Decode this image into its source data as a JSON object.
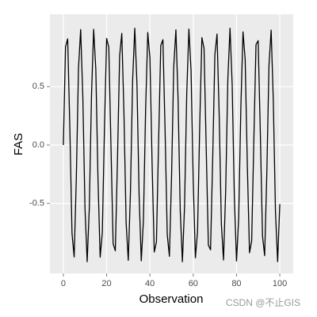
{
  "chart_data": {
    "type": "line",
    "x_label": "Observation",
    "y_label": "FAS",
    "watermark": "CSDN @不止GIS",
    "color": "#000000",
    "grid": true,
    "xlim": [
      -6.2,
      106.2
    ],
    "ylim": [
      -1.1,
      1.12
    ],
    "xticks": [
      0,
      20,
      40,
      60,
      80,
      100
    ],
    "yticks": [
      -0.5,
      {
        "value": 0,
        "label": "0.0"
      },
      0.5
    ],
    "series": [
      {
        "name": "FAS",
        "color": "#000000",
        "x": [
          0,
          1,
          2,
          3,
          4,
          5,
          6,
          7,
          8,
          9,
          10,
          11,
          12,
          13,
          14,
          15,
          16,
          17,
          18,
          19,
          20,
          21,
          22,
          23,
          24,
          25,
          26,
          27,
          28,
          29,
          30,
          31,
          32,
          33,
          34,
          35,
          36,
          37,
          38,
          39,
          40,
          41,
          42,
          43,
          44,
          45,
          46,
          47,
          48,
          49,
          50,
          51,
          52,
          53,
          54,
          55,
          56,
          57,
          58,
          59,
          60,
          61,
          62,
          63,
          64,
          65,
          66,
          67,
          68,
          69,
          70,
          71,
          72,
          73,
          74,
          75,
          76,
          77,
          78,
          79,
          80,
          81,
          82,
          83,
          84,
          85,
          86,
          87,
          88,
          89,
          90,
          91,
          92,
          93,
          94,
          95,
          96,
          97,
          98,
          99,
          100
        ],
        "values": [
          0,
          0.841,
          0.909,
          0.141,
          -0.757,
          -0.959,
          -0.279,
          0.657,
          0.989,
          0.412,
          -0.544,
          -1.0,
          -0.537,
          0.42,
          0.991,
          0.65,
          -0.288,
          -0.961,
          -0.751,
          0.15,
          0.913,
          0.837,
          -0.009,
          -0.846,
          -0.906,
          -0.132,
          0.763,
          0.956,
          0.271,
          -0.664,
          -0.988,
          -0.404,
          0.551,
          1.0,
          0.529,
          -0.428,
          -0.992,
          -0.644,
          0.296,
          0.964,
          0.745,
          -0.159,
          -0.917,
          -0.832,
          0.018,
          0.851,
          0.902,
          0.124,
          -0.768,
          -0.954,
          -0.262,
          0.67,
          0.987,
          0.396,
          -0.559,
          -1.0,
          -0.521,
          0.436,
          0.993,
          0.637,
          -0.305,
          -0.966,
          -0.739,
          0.167,
          0.92,
          0.827,
          -0.027,
          -0.856,
          -0.898,
          -0.115,
          0.774,
          0.951,
          0.254,
          -0.677,
          -0.985,
          -0.388,
          0.566,
          1.0,
          0.514,
          -0.444,
          -0.994,
          -0.629,
          0.313,
          0.969,
          0.733,
          -0.176,
          -0.923,
          -0.822,
          0.035,
          0.86,
          0.894,
          0.106,
          -0.779,
          -0.948,
          -0.245,
          0.683,
          0.984,
          0.379,
          -0.573,
          -0.999,
          -0.506
        ]
      }
    ]
  }
}
